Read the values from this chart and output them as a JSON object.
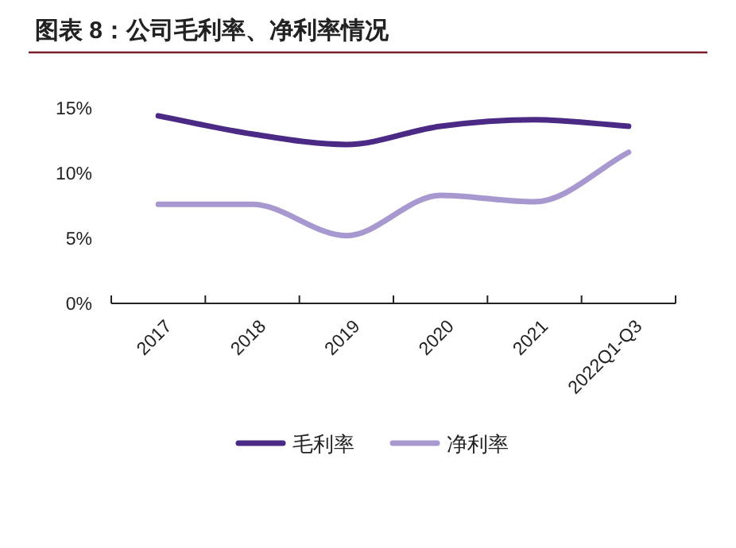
{
  "chart_data": {
    "type": "line",
    "title": "图表 8：公司毛利率、净利率情况",
    "categories": [
      "2017",
      "2018",
      "2019",
      "2020",
      "2021",
      "2022Q1-Q3"
    ],
    "series": [
      {
        "name": "毛利率",
        "color": "#4b2a85",
        "values": [
          14.4,
          13.0,
          12.2,
          13.6,
          14.1,
          13.6
        ]
      },
      {
        "name": "净利率",
        "color": "#a898d0",
        "values": [
          7.6,
          7.6,
          5.2,
          8.3,
          7.8,
          11.6
        ]
      }
    ],
    "ylim": [
      0,
      15
    ],
    "yticks": [
      {
        "value": 0,
        "label": "0%"
      },
      {
        "value": 5,
        "label": "5%"
      },
      {
        "value": 10,
        "label": "10%"
      },
      {
        "value": 15,
        "label": "15%"
      }
    ],
    "grid": false,
    "legend": "bottom",
    "marker": "none",
    "line_style": "solid"
  }
}
